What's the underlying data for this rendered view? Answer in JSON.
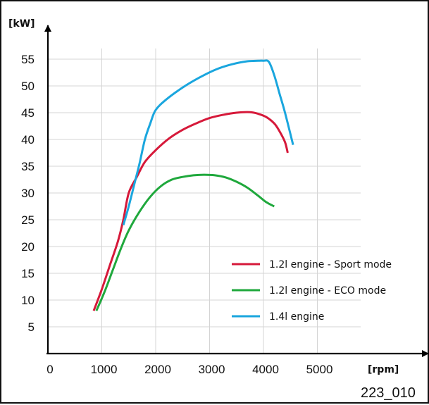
{
  "chart_data": {
    "type": "line",
    "xlabel": "[rpm]",
    "ylabel": "[kW]",
    "xlim": [
      0,
      5400
    ],
    "ylim": [
      0,
      58
    ],
    "x_ticks": [
      0,
      1000,
      2000,
      3000,
      4000,
      5000
    ],
    "y_ticks": [
      5,
      10,
      15,
      20,
      25,
      30,
      35,
      40,
      45,
      50,
      55
    ],
    "grid": true,
    "legend_position": "bottom-right",
    "series": [
      {
        "name": "1.2l engine - Sport mode",
        "color": "#d6193a",
        "x": [
          850,
          1000,
          1150,
          1300,
          1400,
          1500,
          1650,
          1800,
          2000,
          2250,
          2500,
          2750,
          3000,
          3250,
          3500,
          3750,
          3900,
          4050,
          4200,
          4300,
          4400,
          4450
        ],
        "y": [
          8,
          12,
          16.5,
          21,
          25,
          30,
          33,
          35.8,
          38,
          40.2,
          41.8,
          43,
          44,
          44.6,
          45,
          45.1,
          44.8,
          44.2,
          43,
          41.5,
          39.5,
          37.5
        ]
      },
      {
        "name": "1.2l engine - ECO mode",
        "color": "#1fa83c",
        "x": [
          900,
          1050,
          1200,
          1350,
          1500,
          1700,
          1900,
          2100,
          2300,
          2500,
          2700,
          2900,
          3100,
          3300,
          3500,
          3700,
          3900,
          4050,
          4200
        ],
        "y": [
          8,
          11.5,
          15.5,
          19.5,
          23,
          26.5,
          29.3,
          31.3,
          32.5,
          33,
          33.3,
          33.4,
          33.3,
          32.9,
          32.1,
          31,
          29.5,
          28.3,
          27.5
        ]
      },
      {
        "name": "1.4l engine",
        "color": "#1aa6de",
        "x": [
          1400,
          1500,
          1600,
          1700,
          1800,
          1900,
          2000,
          2200,
          2500,
          2800,
          3100,
          3400,
          3700,
          3900,
          4000,
          4100,
          4200,
          4300,
          4400,
          4550
        ],
        "y": [
          24,
          27.5,
          31.5,
          35.5,
          40,
          43,
          45.5,
          47.5,
          49.7,
          51.5,
          53,
          54,
          54.6,
          54.7,
          54.7,
          54.5,
          52,
          48.5,
          45,
          39
        ]
      }
    ]
  },
  "figure_id": "223_010"
}
